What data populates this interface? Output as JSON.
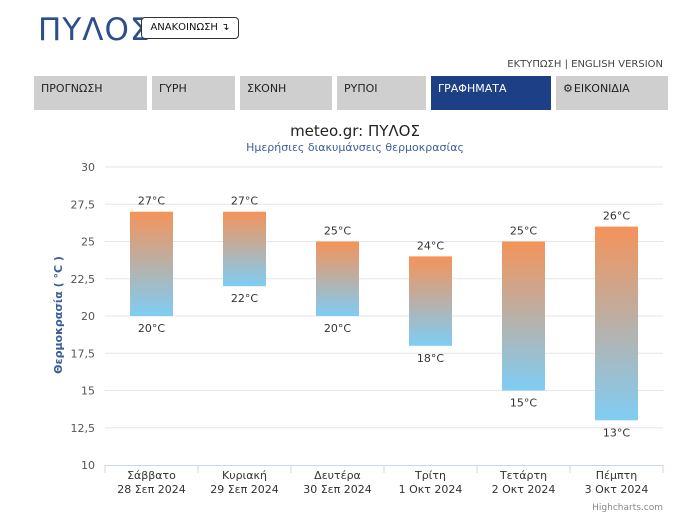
{
  "header": {
    "city": "ΠΥΛΟΣ",
    "announce_label": "ΑΝΑΚΟΙΝΩΣΗ",
    "announce_icon": "arrow-turn-down-icon",
    "print_label": "ΕΚΤΥΠΩΣΗ",
    "separator": "|",
    "english_label": "ENGLISH VERSION"
  },
  "tabs": [
    {
      "label": "ΠΡΟΓΝΩΣΗ",
      "active": false
    },
    {
      "label": "ΓΥΡΗ",
      "active": false
    },
    {
      "label": "ΣΚΟΝΗ",
      "active": false
    },
    {
      "label": "ΡΥΠΟΙ",
      "active": false
    },
    {
      "label": "ΓΡΑΦΗΜΑΤΑ",
      "active": true
    },
    {
      "label": "ΕΙΚΟΝΙΔΙΑ",
      "active": false,
      "icon": "gear-icon"
    }
  ],
  "colors": {
    "active_tab": "#1d3f85",
    "bar_top": "#f4935a",
    "bar_bottom": "#7fcdf4",
    "title": "#222222",
    "subtitle": "#3a5e9c",
    "ylabel": "#3a5e9c"
  },
  "chart_data": {
    "type": "columnrange",
    "title": "meteo.gr: ΠΥΛΟΣ",
    "subtitle": "Ημερήσιες διακυμάνσεις θερμοκρασίας",
    "ylabel": "Θερμοκρασία ( °C )",
    "ylim": [
      10,
      30
    ],
    "yticks": [
      "10",
      "12,5",
      "15",
      "17,5",
      "20",
      "22,5",
      "25",
      "27,5",
      "30"
    ],
    "yticks_values": [
      10,
      12.5,
      15,
      17.5,
      20,
      22.5,
      25,
      27.5,
      30
    ],
    "unit": "°C",
    "grid": true,
    "legend": "none",
    "categories": [
      {
        "day": "Σάββατο",
        "date": "28 Σεπ 2024"
      },
      {
        "day": "Κυριακή",
        "date": "29 Σεπ 2024"
      },
      {
        "day": "Δευτέρα",
        "date": "30 Σεπ 2024"
      },
      {
        "day": "Τρίτη",
        "date": "1 Οκτ 2024"
      },
      {
        "day": "Τετάρτη",
        "date": "2 Οκτ 2024"
      },
      {
        "day": "Πέμπτη",
        "date": "3 Οκτ 2024"
      }
    ],
    "min": [
      20,
      22,
      20,
      18,
      15,
      13
    ],
    "max": [
      27,
      27,
      25,
      24,
      25,
      26
    ],
    "credits": "Highcharts.com"
  }
}
